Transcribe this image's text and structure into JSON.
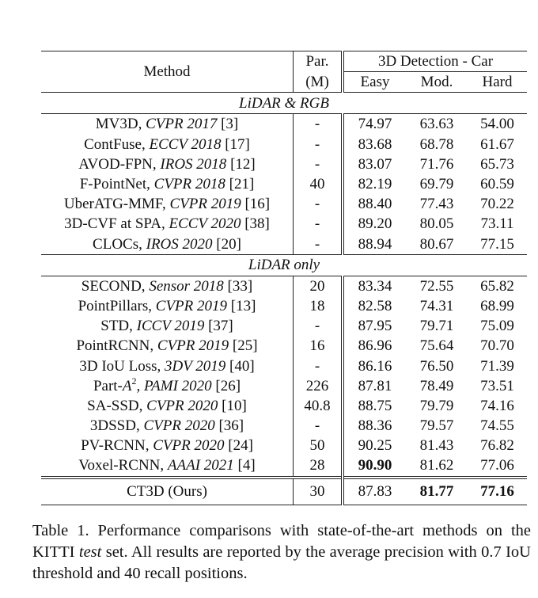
{
  "table": {
    "header": {
      "method": "Method",
      "par_line1": "Par.",
      "par_line2": "(M)",
      "group": "3D Detection - Car",
      "easy": "Easy",
      "mod": "Mod.",
      "hard": "Hard"
    },
    "groups": [
      {
        "label": "LiDAR & RGB",
        "rows": [
          {
            "name": "MV3D, ",
            "venue": "CVPR 2017",
            "ref": " [3]",
            "par": "-",
            "easy": "74.97",
            "mod": "63.63",
            "hard": "54.00",
            "bold": []
          },
          {
            "name": "ContFuse, ",
            "venue": "ECCV 2018",
            "ref": " [17]",
            "par": "-",
            "easy": "83.68",
            "mod": "68.78",
            "hard": "61.67",
            "bold": []
          },
          {
            "name": "AVOD-FPN, ",
            "venue": "IROS 2018",
            "ref": " [12]",
            "par": "-",
            "easy": "83.07",
            "mod": "71.76",
            "hard": "65.73",
            "bold": []
          },
          {
            "name": "F-PointNet, ",
            "venue": "CVPR 2018",
            "ref": " [21]",
            "par": "40",
            "easy": "82.19",
            "mod": "69.79",
            "hard": "60.59",
            "bold": []
          },
          {
            "name": "UberATG-MMF, ",
            "venue": "CVPR 2019",
            "ref": " [16]",
            "par": "-",
            "easy": "88.40",
            "mod": "77.43",
            "hard": "70.22",
            "bold": []
          },
          {
            "name": "3D-CVF at SPA, ",
            "venue": "ECCV 2020",
            "ref": " [38]",
            "par": "-",
            "easy": "89.20",
            "mod": "80.05",
            "hard": "73.11",
            "bold": []
          },
          {
            "name": "CLOCs, ",
            "venue": "IROS 2020",
            "ref": " [20]",
            "par": "-",
            "easy": "88.94",
            "mod": "80.67",
            "hard": "77.15",
            "bold": []
          }
        ]
      },
      {
        "label": "LiDAR only",
        "rows": [
          {
            "name": "SECOND, ",
            "venue": "Sensor 2018",
            "ref": " [33]",
            "par": "20",
            "easy": "83.34",
            "mod": "72.55",
            "hard": "65.82",
            "bold": []
          },
          {
            "name": "PointPillars, ",
            "venue": "CVPR 2019",
            "ref": " [13]",
            "par": "18",
            "easy": "82.58",
            "mod": "74.31",
            "hard": "68.99",
            "bold": []
          },
          {
            "name": "STD, ",
            "venue": "ICCV 2019",
            "ref": " [37]",
            "par": "-",
            "easy": "87.95",
            "mod": "79.71",
            "hard": "75.09",
            "bold": []
          },
          {
            "name": "PointRCNN, ",
            "venue": "CVPR 2019",
            "ref": " [25]",
            "par": "16",
            "easy": "86.96",
            "mod": "75.64",
            "hard": "70.70",
            "bold": []
          },
          {
            "name": "3D IoU Loss, ",
            "venue": "3DV 2019",
            "ref": " [40]",
            "par": "-",
            "easy": "86.16",
            "mod": "76.50",
            "hard": "71.39",
            "bold": []
          },
          {
            "name": "Part-",
            "math": "A",
            "sup": "2",
            "name_tail": ", ",
            "venue": "PAMI 2020",
            "ref": " [26]",
            "par": "226",
            "easy": "87.81",
            "mod": "78.49",
            "hard": "73.51",
            "bold": []
          },
          {
            "name": "SA-SSD, ",
            "venue": "CVPR 2020",
            "ref": " [10]",
            "par": "40.8",
            "easy": "88.75",
            "mod": "79.79",
            "hard": "74.16",
            "bold": []
          },
          {
            "name": "3DSSD, ",
            "venue": "CVPR 2020",
            "ref": " [36]",
            "par": "-",
            "easy": "88.36",
            "mod": "79.57",
            "hard": "74.55",
            "bold": []
          },
          {
            "name": "PV-RCNN, ",
            "venue": "CVPR 2020",
            "ref": " [24]",
            "par": "50",
            "easy": "90.25",
            "mod": "81.43",
            "hard": "76.82",
            "bold": []
          },
          {
            "name": "Voxel-RCNN, ",
            "venue": "AAAI 2021",
            "ref": " [4]",
            "par": "28",
            "easy": "90.90",
            "mod": "81.62",
            "hard": "77.06",
            "bold": [
              "easy"
            ]
          }
        ]
      }
    ],
    "ours": {
      "name": "CT3D (Ours)",
      "par": "30",
      "easy": "87.83",
      "mod": "81.77",
      "hard": "77.16",
      "bold": [
        "mod",
        "hard"
      ]
    }
  },
  "caption": {
    "prefix": "Table 1. Performance comparisons with state-of-the-art methods on the KITTI ",
    "italic": "test",
    "suffix": " set. All results are reported by the average precision with 0.7 IoU threshold and 40 recall positions."
  }
}
